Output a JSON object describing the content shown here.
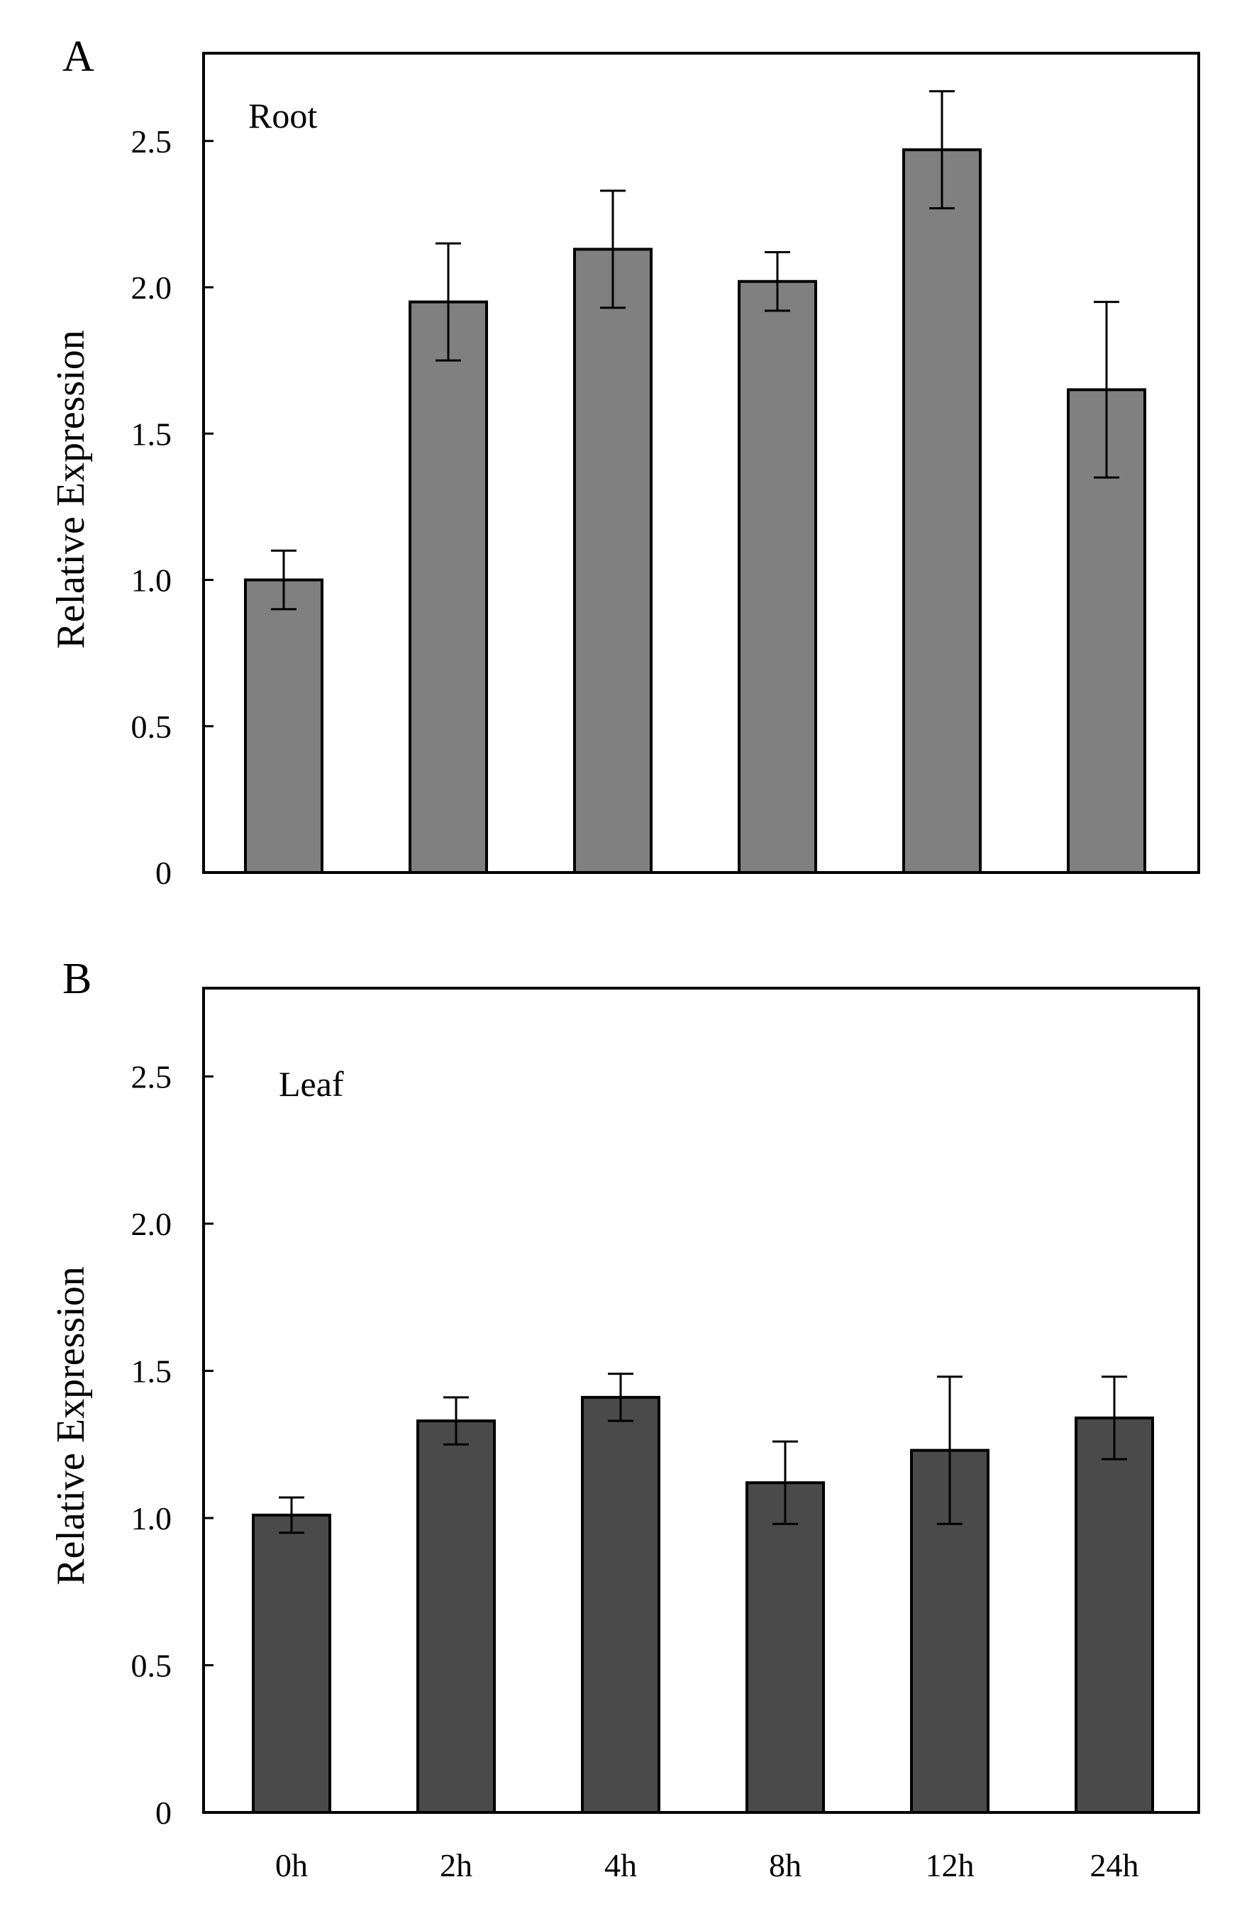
{
  "chart_data": [
    {
      "type": "bar",
      "panel": "A",
      "series_label": "Root",
      "ylabel": "Relative Expression",
      "xlabel": "",
      "categories": [
        "0h",
        "2h",
        "4h",
        "8h",
        "12h",
        "24h"
      ],
      "values": [
        1.0,
        1.95,
        2.13,
        2.02,
        2.47,
        1.65
      ],
      "errors": [
        0.1,
        0.2,
        0.2,
        0.1,
        0.2,
        0.3
      ],
      "ylim": [
        0,
        2.8
      ],
      "yticks": [
        0,
        0.5,
        1.0,
        1.5,
        2.0,
        2.5
      ],
      "ytick_labels": [
        "0",
        "0.5",
        "1.0",
        "1.5",
        "2.0",
        "2.5"
      ],
      "bar_color": "#808080",
      "show_xtick_labels": false
    },
    {
      "type": "bar",
      "panel": "B",
      "series_label": "Leaf",
      "ylabel": "Relative Expression",
      "xlabel": "",
      "categories": [
        "0h",
        "2h",
        "4h",
        "8h",
        "12h",
        "24h"
      ],
      "values": [
        1.01,
        1.33,
        1.41,
        1.12,
        1.23,
        1.34
      ],
      "errors": [
        0.06,
        0.08,
        0.08,
        0.14,
        0.25,
        0.14
      ],
      "ylim": [
        0,
        2.8
      ],
      "yticks": [
        0,
        0.5,
        1.0,
        1.5,
        2.0,
        2.5
      ],
      "ytick_labels": [
        "0",
        "0.5",
        "1.0",
        "1.5",
        "2.0",
        "2.5"
      ],
      "bar_color": "#4a4a4a",
      "show_xtick_labels": true
    }
  ]
}
